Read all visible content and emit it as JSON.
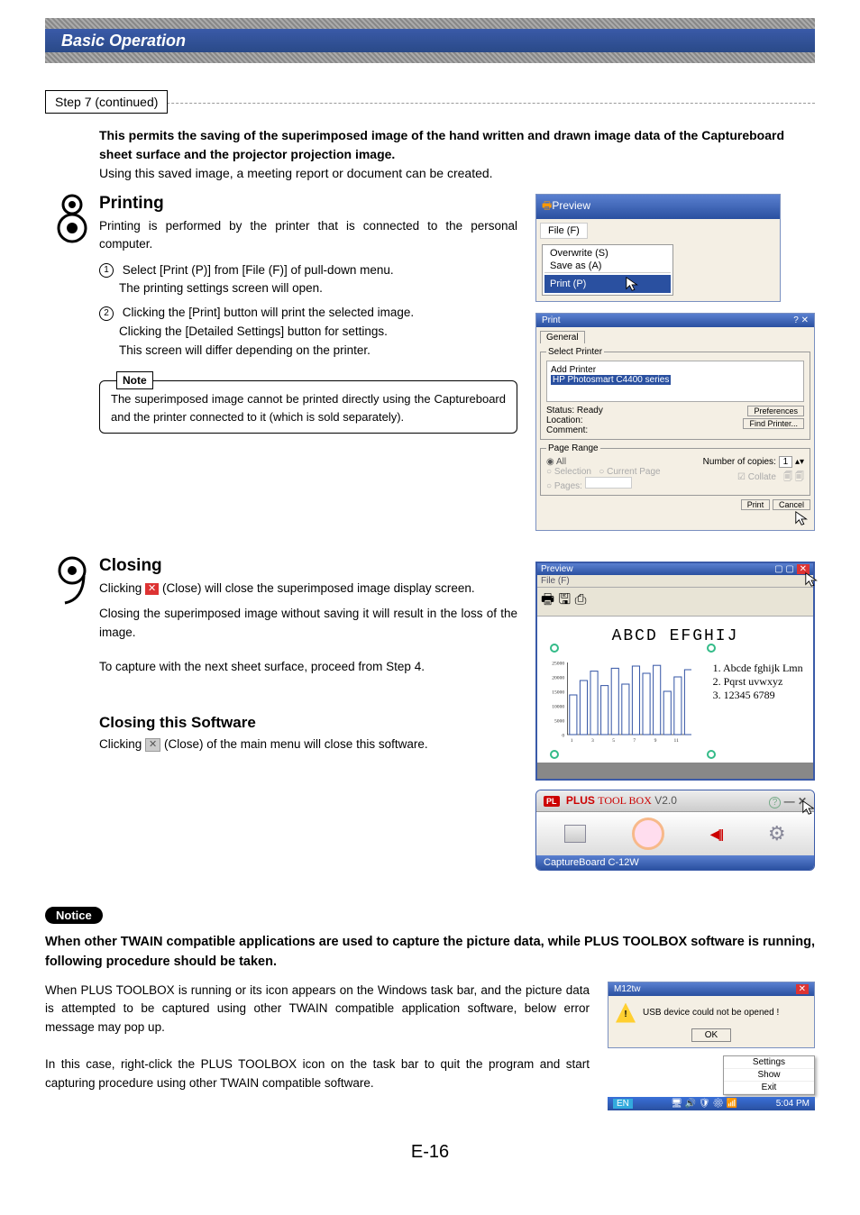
{
  "header": {
    "title": "Basic Operation"
  },
  "step": {
    "label": "Step 7 (continued)"
  },
  "intro": {
    "bold": "This permits the saving of the superimposed image of the hand written and drawn image data of the Captureboard sheet surface and the projector projection image.",
    "text": "Using this saved image, a meeting report or document can be created."
  },
  "printing": {
    "heading": "Printing",
    "p1": "Printing is performed by the printer that is connected to the personal computer.",
    "li1a": "Select [Print (P)] from [File (F)] of pull-down menu.",
    "li1b": "The printing settings screen will open.",
    "li2a": "Clicking the [Print] button will print the selected image.",
    "li2b": "Clicking the [Detailed Settings] button for settings.",
    "li2c": "This screen will differ depending on the printer.",
    "note_label": "Note",
    "note_body": "The superimposed image cannot be printed directly using the Captureboard and the printer connected to it (which is sold separately)."
  },
  "preview_menu": {
    "title": "Preview",
    "file": "File (F)",
    "overwrite": "Overwrite (S)",
    "saveas": "Save as (A)",
    "printp": "Print (P)"
  },
  "print_dialog": {
    "title": "Print",
    "help_close": "? ✕",
    "tab": "General",
    "select_printer": "Select Printer",
    "add_printer": "Add Printer",
    "printer_name": "HP Photosmart C4400 series",
    "status": "Status:    Ready",
    "location": "Location:",
    "comment": "Comment:",
    "preferences": "Preferences",
    "find_printer": "Find Printer...",
    "page_range": "Page Range",
    "all": "All",
    "selection": "Selection",
    "current": "Current Page",
    "pages": "Pages:",
    "copies": "Number of copies:",
    "copies_val": "1",
    "collate": "Collate",
    "print_btn": "Print",
    "cancel_btn": "Cancel"
  },
  "closing": {
    "heading": "Closing",
    "p1a": "Clicking ",
    "p1b": " (Close) will close the superimposed image display screen.",
    "p2": "Closing the superimposed image without saving it will result in the loss of the image.",
    "p3": "To capture with the next sheet surface, proceed from Step 4.",
    "sub_heading": "Closing this Software",
    "sub_a": "Clicking ",
    "sub_b": " (Close) of the main menu will close this software."
  },
  "preview_window": {
    "title": "Preview",
    "menu": "File (F)",
    "heading": "ABCD  EFGHIJ",
    "ylabels": [
      "25000",
      "20000",
      "15000",
      "10000",
      "5000",
      "0"
    ],
    "xlabels": [
      "1",
      "3",
      "5",
      "7",
      "9",
      "11"
    ],
    "bars": [
      55,
      75,
      88,
      68,
      92,
      70,
      95,
      85,
      96,
      60,
      80,
      90
    ],
    "bar_color": "#3a5aa8",
    "list1": "1. Abcde fghijk Lmn",
    "list2": "2. Pqrst uvwxyz",
    "list3": "3. 12345 6789"
  },
  "toolbox": {
    "brand_a": "PLUS ",
    "brand_b": "TOOL BOX",
    "version": " V2.0",
    "device": "CaptureBoard C-12W"
  },
  "notice": {
    "label": "Notice",
    "intro": "When other TWAIN compatible applications are used to capture the picture data, while PLUS TOOLBOX software is running, following procedure should be taken.",
    "p1": "When PLUS TOOLBOX is running or its icon appears on the Windows task bar, and the picture data is attempted to be captured using other TWAIN compatible application software, below error message may pop up.",
    "p2": "In this case, right-click the PLUS TOOLBOX icon on the task bar to quit the program and start capturing procedure using other TWAIN compatible software."
  },
  "error_dialog": {
    "title": "M12tw",
    "msg": "USB device could not be opened !",
    "ok": "OK"
  },
  "ctx": {
    "settings": "Settings",
    "show": "Show",
    "exit": "Exit"
  },
  "tray": {
    "lang": "EN",
    "time": "5:04 PM"
  },
  "pagenum": "E-16"
}
